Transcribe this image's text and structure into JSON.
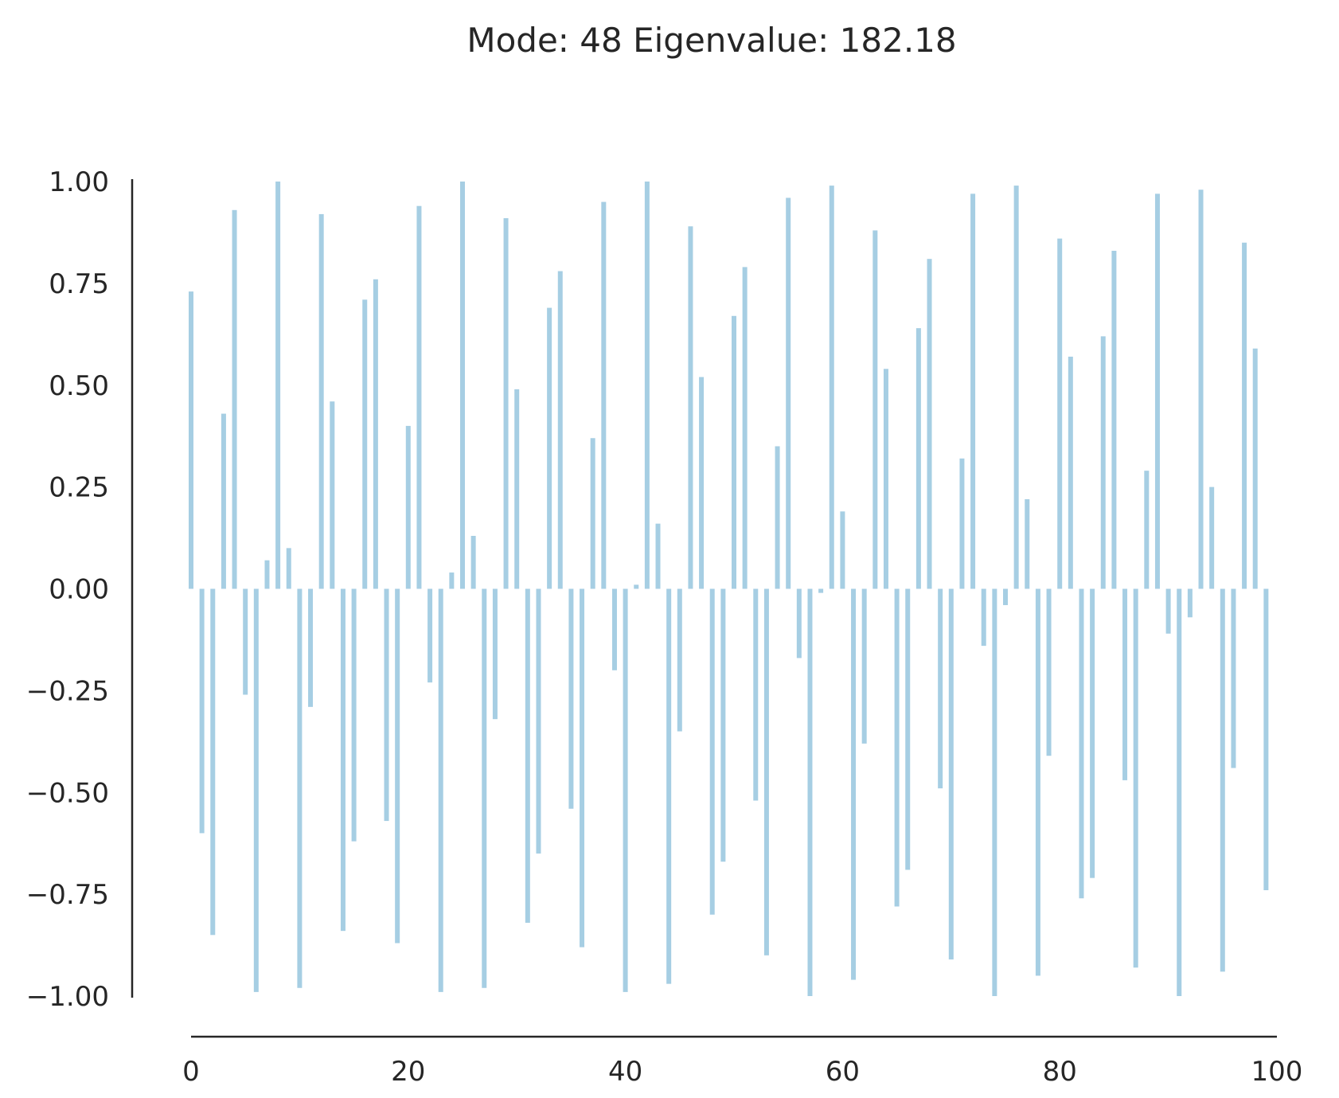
{
  "chart_data": {
    "type": "bar",
    "title": "Mode: 48  Eigenvalue: 182.18",
    "xlabel": "",
    "ylabel": "",
    "bar_color": "#a6cee3",
    "axis_color": "#262626",
    "xlim": [
      0,
      100
    ],
    "ylim": [
      -1.0,
      1.0
    ],
    "xticks": [
      0,
      20,
      40,
      60,
      80,
      100
    ],
    "xtick_labels": [
      "0",
      "20",
      "40",
      "60",
      "80",
      "100"
    ],
    "yticks": [
      1.0,
      0.75,
      0.5,
      0.25,
      0.0,
      -0.25,
      -0.5,
      -0.75,
      -1.0
    ],
    "ytick_labels": [
      "1.00",
      "0.75",
      "0.50",
      "0.25",
      "0.00",
      "−0.25",
      "−0.50",
      "−0.75",
      "−1.00"
    ],
    "grid": false,
    "x": [
      0,
      1,
      2,
      3,
      4,
      5,
      6,
      7,
      8,
      9,
      10,
      11,
      12,
      13,
      14,
      15,
      16,
      17,
      18,
      19,
      20,
      21,
      22,
      23,
      24,
      25,
      26,
      27,
      28,
      29,
      30,
      31,
      32,
      33,
      34,
      35,
      36,
      37,
      38,
      39,
      40,
      41,
      42,
      43,
      44,
      45,
      46,
      47,
      48,
      49,
      50,
      51,
      52,
      53,
      54,
      55,
      56,
      57,
      58,
      59,
      60,
      61,
      62,
      63,
      64,
      65,
      66,
      67,
      68,
      69,
      70,
      71,
      72,
      73,
      74,
      75,
      76,
      77,
      78,
      79,
      80,
      81,
      82,
      83,
      84,
      85,
      86,
      87,
      88,
      89,
      90,
      91,
      92,
      93,
      94,
      95,
      96,
      97,
      98,
      99
    ],
    "values": [
      0.73,
      -0.6,
      -0.85,
      0.43,
      0.93,
      -0.26,
      -0.99,
      0.07,
      1.0,
      0.1,
      -0.98,
      -0.29,
      0.92,
      0.46,
      -0.84,
      -0.62,
      0.71,
      0.76,
      -0.57,
      -0.87,
      0.4,
      0.94,
      -0.23,
      -0.99,
      0.04,
      1.0,
      0.13,
      -0.98,
      -0.32,
      0.91,
      0.49,
      -0.82,
      -0.65,
      0.69,
      0.78,
      -0.54,
      -0.88,
      0.37,
      0.95,
      -0.2,
      -0.99,
      0.01,
      1.0,
      0.16,
      -0.97,
      -0.35,
      0.89,
      0.52,
      -0.8,
      -0.67,
      0.67,
      0.79,
      -0.52,
      -0.9,
      0.35,
      0.96,
      -0.17,
      -1.0,
      -0.01,
      0.99,
      0.19,
      -0.96,
      -0.38,
      0.88,
      0.54,
      -0.78,
      -0.69,
      0.64,
      0.81,
      -0.49,
      -0.91,
      0.32,
      0.97,
      -0.14,
      -1.0,
      -0.04,
      0.99,
      0.22,
      -0.95,
      -0.41,
      0.86,
      0.57,
      -0.76,
      -0.71,
      0.62,
      0.83,
      -0.47,
      -0.93,
      0.29,
      0.97,
      -0.11,
      -1.0,
      -0.07,
      0.98,
      0.25,
      -0.94,
      -0.44,
      0.85,
      0.59,
      -0.74
    ]
  }
}
